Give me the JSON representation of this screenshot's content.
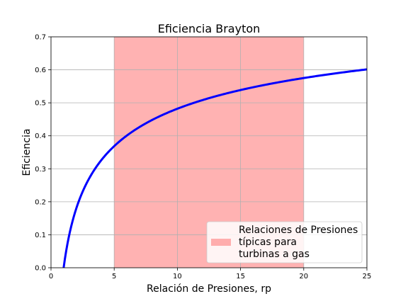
{
  "chart_data": {
    "type": "line",
    "title": "Eficiencia Brayton",
    "xlabel": "Relación de Presiones, rp",
    "ylabel": "Eficiencia",
    "xlim": [
      0,
      25
    ],
    "ylim": [
      0,
      0.7
    ],
    "x_ticks": [
      "0",
      "5",
      "10",
      "15",
      "20",
      "25"
    ],
    "y_ticks": [
      "0.0",
      "0.1",
      "0.2",
      "0.3",
      "0.4",
      "0.5",
      "0.6",
      "0.7"
    ],
    "x_tick_values": [
      0,
      5,
      10,
      15,
      20,
      25
    ],
    "y_tick_values": [
      0,
      0.1,
      0.2,
      0.3,
      0.4,
      0.5,
      0.6,
      0.7
    ],
    "grid": true,
    "series": [
      {
        "name": "Eficiencia Brayton",
        "color": "#0000ff",
        "gamma": 1.4,
        "x": [
          1,
          1.5,
          2,
          2.5,
          3,
          3.5,
          4,
          4.5,
          5,
          6,
          7,
          8,
          9,
          10,
          11,
          12,
          13,
          14,
          15,
          16,
          17,
          18,
          19,
          20,
          21,
          22,
          23,
          24,
          25
        ],
        "y": [
          0.0,
          0.109,
          0.18,
          0.23,
          0.27,
          0.301,
          0.327,
          0.349,
          0.369,
          0.401,
          0.427,
          0.448,
          0.466,
          0.482,
          0.496,
          0.508,
          0.519,
          0.53,
          0.539,
          0.547,
          0.555,
          0.562,
          0.569,
          0.575,
          0.581,
          0.586,
          0.592,
          0.596,
          0.601
        ]
      }
    ],
    "shaded_region": {
      "x_start": 5,
      "x_end": 20,
      "color": "#ff6666",
      "label_lines": [
        "Relaciones de Presiones",
        "típicas para",
        "turbinas a gas"
      ]
    },
    "legend_position": "lower-right"
  }
}
